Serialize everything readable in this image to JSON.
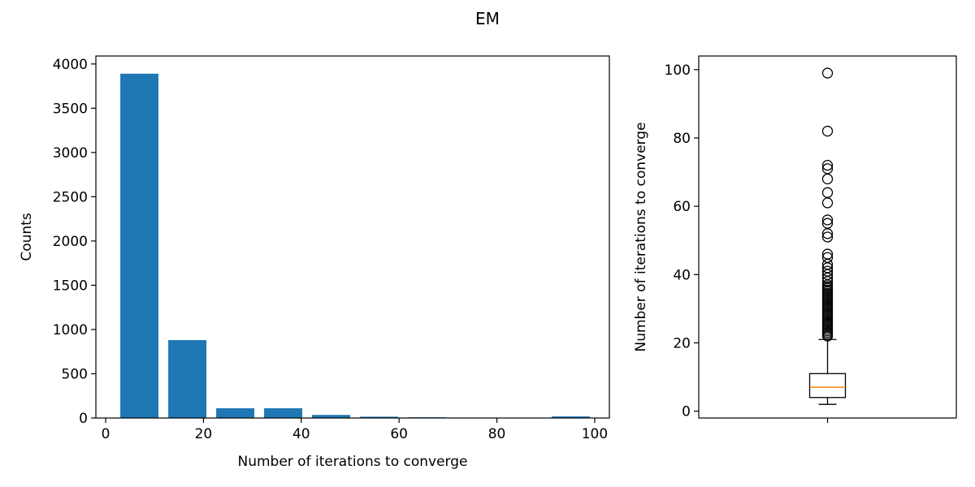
{
  "figure": {
    "title": "EM"
  },
  "chart_data": [
    {
      "type": "bar",
      "title": "",
      "xlabel": "Number of iterations to converge",
      "ylabel": "Counts",
      "xlim": [
        -2,
        103
      ],
      "ylim": [
        0,
        4090
      ],
      "x_ticks": [
        0,
        20,
        40,
        60,
        80,
        100
      ],
      "y_ticks": [
        0,
        500,
        1000,
        1500,
        2000,
        2500,
        3000,
        3500,
        4000
      ],
      "bar_color": "#1f77b4",
      "bins": [
        {
          "start": 3,
          "end": 10.8,
          "count": 3890
        },
        {
          "start": 12.8,
          "end": 20.6,
          "count": 880
        },
        {
          "start": 22.6,
          "end": 30.4,
          "count": 110
        },
        {
          "start": 32.4,
          "end": 40.2,
          "count": 110
        },
        {
          "start": 42.2,
          "end": 50.0,
          "count": 35
        },
        {
          "start": 52.0,
          "end": 59.8,
          "count": 15
        },
        {
          "start": 61.8,
          "end": 69.6,
          "count": 8
        },
        {
          "start": 71.6,
          "end": 79.4,
          "count": 5
        },
        {
          "start": 81.4,
          "end": 89.2,
          "count": 3
        },
        {
          "start": 91.2,
          "end": 99.0,
          "count": 18
        }
      ],
      "grid": false
    },
    {
      "type": "box",
      "title": "",
      "ylabel": "Number of iterations to converge",
      "ylim": [
        -2,
        104
      ],
      "y_ticks": [
        0,
        20,
        40,
        60,
        80,
        100
      ],
      "box": {
        "whisker_low": 2,
        "q1": 4,
        "median": 7,
        "q3": 11,
        "whisker_high": 21
      },
      "median_color": "#ff7f0e",
      "outliers": [
        22,
        22.5,
        23,
        23.5,
        24,
        24.5,
        25,
        25.5,
        26,
        26.5,
        27,
        27.5,
        28,
        28.5,
        29,
        29.5,
        30,
        30.5,
        31,
        31.5,
        32,
        32.5,
        33,
        33.5,
        34,
        34.5,
        35,
        35.5,
        36,
        36.5,
        37,
        38,
        39,
        40,
        41,
        42,
        43,
        45,
        46,
        51,
        52,
        55,
        56,
        61,
        64,
        68,
        71,
        72,
        82,
        99
      ],
      "grid": false
    }
  ]
}
